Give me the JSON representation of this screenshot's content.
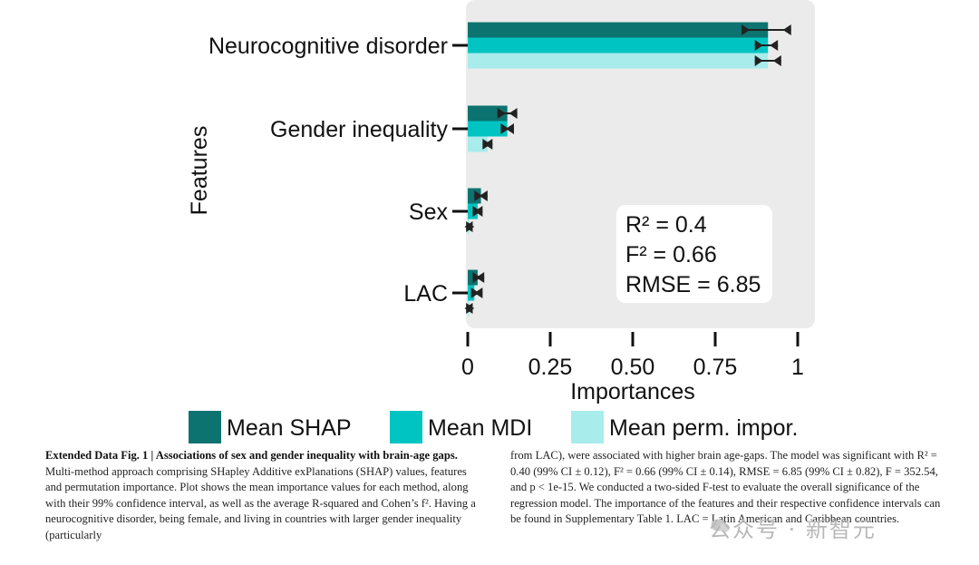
{
  "chart_data": {
    "type": "bar",
    "orientation": "horizontal",
    "categories": [
      "Neurocognitive disorder",
      "Gender inequality",
      "Sex",
      "LAC"
    ],
    "series": [
      {
        "name": "Mean SHAP",
        "color": "#0c7370",
        "values": [
          0.91,
          0.12,
          0.04,
          0.03
        ],
        "ci": [
          [
            0.83,
            0.98
          ],
          [
            0.09,
            0.15
          ],
          [
            0.02,
            0.06
          ],
          [
            0.015,
            0.05
          ]
        ]
      },
      {
        "name": "Mean MDI",
        "color": "#00c4c2",
        "values": [
          0.91,
          0.12,
          0.03,
          0.02
        ],
        "ci": [
          [
            0.87,
            0.94
          ],
          [
            0.1,
            0.14
          ],
          [
            0.015,
            0.045
          ],
          [
            0.01,
            0.045
          ]
        ]
      },
      {
        "name": "Mean perm. impor.",
        "color": "#a8ecec",
        "values": [
          0.91,
          0.06,
          0.005,
          0.005
        ],
        "ci": [
          [
            0.87,
            0.95
          ],
          [
            0.045,
            0.075
          ],
          [
            -0.005,
            0.015
          ],
          [
            -0.005,
            0.015
          ]
        ]
      }
    ],
    "xlabel": "Importances",
    "ylabel": "Features",
    "xlim": [
      0,
      1
    ],
    "xticks": [
      "0",
      "0.25",
      "0.50",
      "0.75",
      "1"
    ],
    "xtick_values": [
      0,
      0.25,
      0.5,
      0.75,
      1
    ],
    "grid": false,
    "legend_position": "bottom",
    "annotation": [
      "R² = 0.4",
      "F² = 0.66",
      "RMSE = 6.85"
    ]
  },
  "caption": {
    "label": "Extended Data Fig. 1 | Associations of sex and gender inequality with brain-age gaps.",
    "left_text": "Multi-method approach comprising SHapley Additive exPlanations (SHAP) values, features and permutation importance. Plot shows the mean importance values for each method, along with their 99% confidence interval, as well as the average R-squared and Cohen’s f². Having a neurocognitive disorder, being female, and living in countries with larger gender inequality (particularly",
    "right_text": "from LAC), were associated with higher brain age-gaps. The model was significant with R² = 0.40 (99% CI ± 0.12), F² = 0.66 (99% CI ± 0.14), RMSE = 6.85 (99% CI ± 0.82), F = 352.54, and p < 1e-15. We conducted a two-sided F-test to evaluate the overall significance of the regression model. The importance of the features and their respective confidence intervals can be found in Supplementary Table 1. LAC = Latin American and Caribbean countries."
  },
  "watermark": "公众号 · 新智元",
  "colors": {
    "panel_bg": "#ebebeb",
    "annotation_bg": "#ffffff",
    "error_marker": "#222222"
  }
}
